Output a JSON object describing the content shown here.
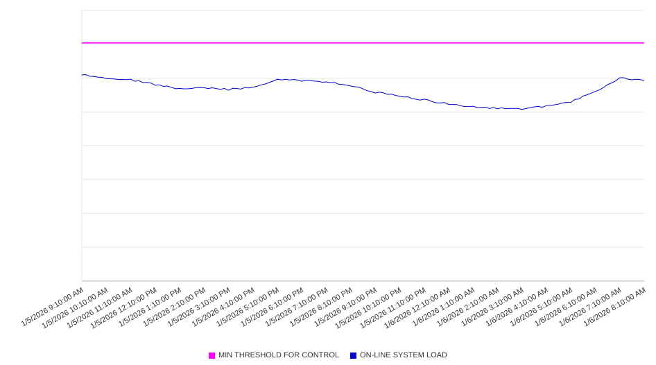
{
  "chart_data": {
    "type": "line",
    "title": "",
    "xlabel": "",
    "ylabel": "",
    "ylim": [
      0,
      100
    ],
    "grid": true,
    "legend_position": "bottom",
    "x_labels": [
      "1/5/2026 9:10:00 AM",
      "1/5/2026 10:10:00 AM",
      "1/5/2026 11:10:00 AM",
      "1/5/2026 12:10:00 PM",
      "1/5/2026 1:10:00 PM",
      "1/5/2026 2:10:00 PM",
      "1/5/2026 3:10:00 PM",
      "1/5/2026 4:10:00 PM",
      "1/5/2026 5:10:00 PM",
      "1/5/2026 6:10:00 PM",
      "1/5/2026 7:10:00 PM",
      "1/5/2026 8:10:00 PM",
      "1/5/2026 9:10:00 PM",
      "1/5/2026 10:10:00 PM",
      "1/5/2026 11:10:00 PM",
      "1/6/2026 12:10:00 AM",
      "1/6/2026 1:10:00 AM",
      "1/6/2026 2:10:00 AM",
      "1/6/2026 3:10:00 AM",
      "1/6/2026 4:10:00 AM",
      "1/6/2026 5:10:00 AM",
      "1/6/2026 6:10:00 AM",
      "1/6/2026 7:10:00 AM",
      "1/6/2026 8:10:00 AM"
    ],
    "series": [
      {
        "name": "MIN THRESHOLD FOR CONTROL",
        "type": "threshold",
        "color": "#ff00ff",
        "value": 88
      },
      {
        "name": "ON-LINE SYSTEM LOAD",
        "type": "line",
        "color": "#0000cd",
        "values": [
          76.2,
          75.1,
          74.4,
          72.6,
          71.0,
          71.3,
          70.8,
          71.5,
          74.4,
          74.1,
          73.6,
          72.3,
          69.7,
          68.5,
          66.9,
          65.4,
          64.4,
          63.8,
          63.6,
          64.6,
          66.2,
          70.0,
          75.1,
          74.1
        ]
      }
    ],
    "colors": {
      "gridline": "#e6e6e6",
      "axis": "#b3b3b3",
      "tick_text": "#333333"
    }
  }
}
